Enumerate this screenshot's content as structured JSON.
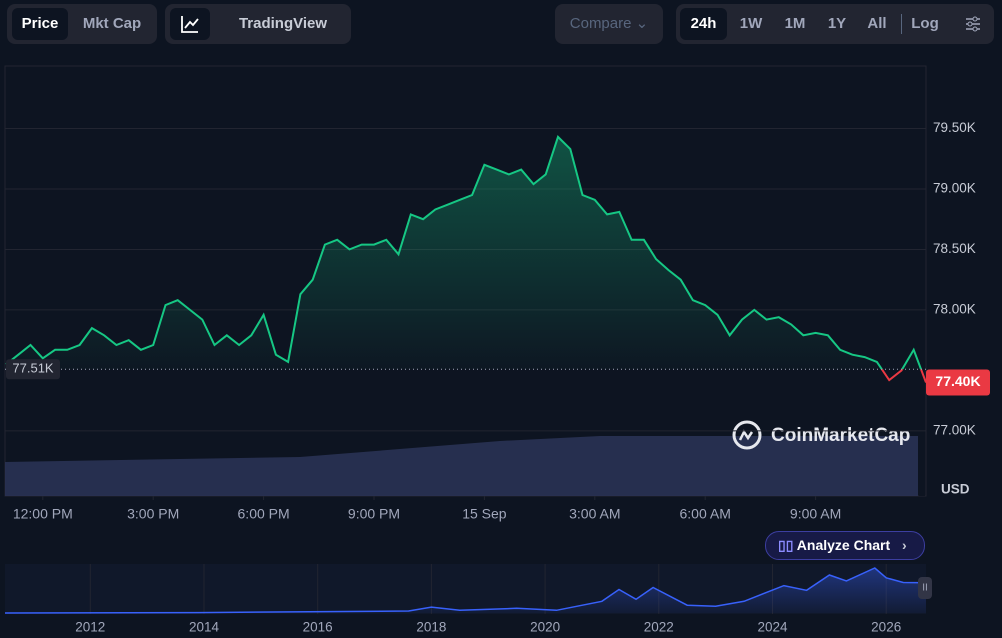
{
  "toolbar": {
    "view_tabs": [
      "Price",
      "Mkt Cap"
    ],
    "chart_tabs": [
      "TradingView"
    ],
    "compare": "Compare",
    "ranges": [
      "24h",
      "1W",
      "1M",
      "1Y",
      "All"
    ],
    "log": "Log"
  },
  "watermark": "CoinMarketCap",
  "analyze": "Analyze Chart",
  "chart_data": [
    {
      "type": "line",
      "currency": "USD",
      "values": [
        77.55,
        77.63,
        77.71,
        77.6,
        77.67,
        77.67,
        77.71,
        77.85,
        77.79,
        77.71,
        77.75,
        77.67,
        77.71,
        78.04,
        78.08,
        78.0,
        77.92,
        77.71,
        77.79,
        77.71,
        77.79,
        77.96,
        77.63,
        77.57,
        78.13,
        78.25,
        78.54,
        78.58,
        78.5,
        78.54,
        78.54,
        78.58,
        78.46,
        78.79,
        78.75,
        78.83,
        78.87,
        78.91,
        78.95,
        79.2,
        79.16,
        79.12,
        79.16,
        79.04,
        79.12,
        79.43,
        79.33,
        78.95,
        78.91,
        78.79,
        78.81,
        78.58,
        78.58,
        78.42,
        78.33,
        78.25,
        78.08,
        78.04,
        77.96,
        77.79,
        77.92,
        78.0,
        77.92,
        77.94,
        77.88,
        77.79,
        77.81,
        77.79,
        77.67,
        77.63,
        77.61,
        77.57,
        77.42,
        77.5,
        77.67,
        77.4
      ],
      "xlim": [
        0,
        75
      ],
      "xticks": [
        {
          "value": 3,
          "label": "12:00 PM"
        },
        {
          "value": 12,
          "label": "3:00 PM"
        },
        {
          "value": 21,
          "label": "6:00 PM"
        },
        {
          "value": 30,
          "label": "9:00 PM"
        },
        {
          "value": 39,
          "label": "15 Sep"
        },
        {
          "value": 48,
          "label": "3:00 AM"
        },
        {
          "value": 57,
          "label": "6:00 AM"
        },
        {
          "value": 66,
          "label": "9:00 AM"
        }
      ],
      "ylim": [
        76.47,
        80.0
      ],
      "yticks": [
        {
          "value": 77,
          "label": "77.00K"
        },
        {
          "value": 78,
          "label": "78.00K"
        },
        {
          "value": 78.5,
          "label": "78.50K"
        },
        {
          "value": 79,
          "label": "79.00K"
        },
        {
          "value": 79.5,
          "label": "79.50K"
        }
      ],
      "grid": true,
      "reference": {
        "value": 77.51,
        "label": "77.51K"
      },
      "last": {
        "value": 77.4,
        "label": "77.40K"
      },
      "colors": {
        "up": "#16c784",
        "down": "#ea3943"
      }
    },
    {
      "type": "area",
      "x": [
        2010.5,
        2013.9,
        2017.6,
        2018.0,
        2018.5,
        2019.5,
        2020.2,
        2021.0,
        2021.3,
        2021.6,
        2021.9,
        2022.5,
        2023.0,
        2023.5,
        2024.2,
        2024.6,
        2025.0,
        2025.3,
        2025.8,
        2026.0,
        2026.3,
        2026.7
      ],
      "values": [
        0,
        1,
        5,
        15,
        7,
        12,
        7,
        30,
        60,
        35,
        65,
        20,
        17,
        30,
        70,
        58,
        97,
        82,
        115,
        90,
        78,
        77
      ],
      "xlim": [
        2010.5,
        2026.7
      ],
      "ylim": [
        0,
        120
      ],
      "xticks": [
        2012,
        2014,
        2016,
        2018,
        2020,
        2022,
        2024,
        2026
      ],
      "color": "#3861fb"
    }
  ]
}
